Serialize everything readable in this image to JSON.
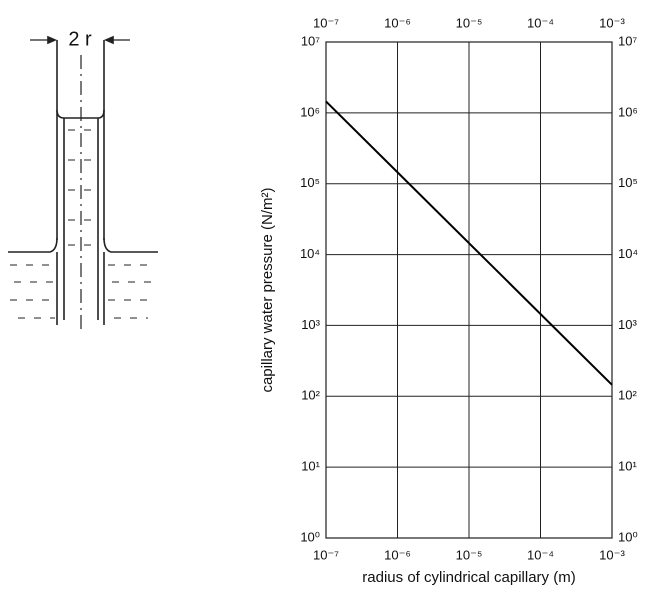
{
  "chart_data": {
    "type": "line",
    "annotation": "2 r",
    "xlabel": "radius of cylindrical capillary   (m)",
    "ylabel": "capillary water pressure   (N/m²)",
    "x": [
      1e-07,
      0.001
    ],
    "series": [
      {
        "color": "#000000",
        "values": [
          1450000,
          145
        ]
      }
    ],
    "xlog": true,
    "ylog": true,
    "grid": true,
    "xlim": [
      1e-07,
      0.001
    ],
    "xticks": [
      {
        "value": 1e-07,
        "label": "10⁻⁷"
      },
      {
        "value": 1e-06,
        "label": "10⁻⁶"
      },
      {
        "value": 1e-05,
        "label": "10⁻⁵"
      },
      {
        "value": 0.0001,
        "label": "10⁻⁴"
      },
      {
        "value": 0.001,
        "label": "10⁻³"
      }
    ],
    "ylim": [
      1,
      10000000
    ],
    "yticks": [
      {
        "value": 1,
        "label": "10⁰"
      },
      {
        "value": 10,
        "label": "10¹"
      },
      {
        "value": 100,
        "label": "10²"
      },
      {
        "value": 1000,
        "label": "10³"
      },
      {
        "value": 10000,
        "label": "10⁴"
      },
      {
        "value": 100000,
        "label": "10⁵"
      },
      {
        "value": 1000000,
        "label": "10⁶"
      },
      {
        "value": 10000000,
        "label": "10⁷"
      }
    ]
  }
}
